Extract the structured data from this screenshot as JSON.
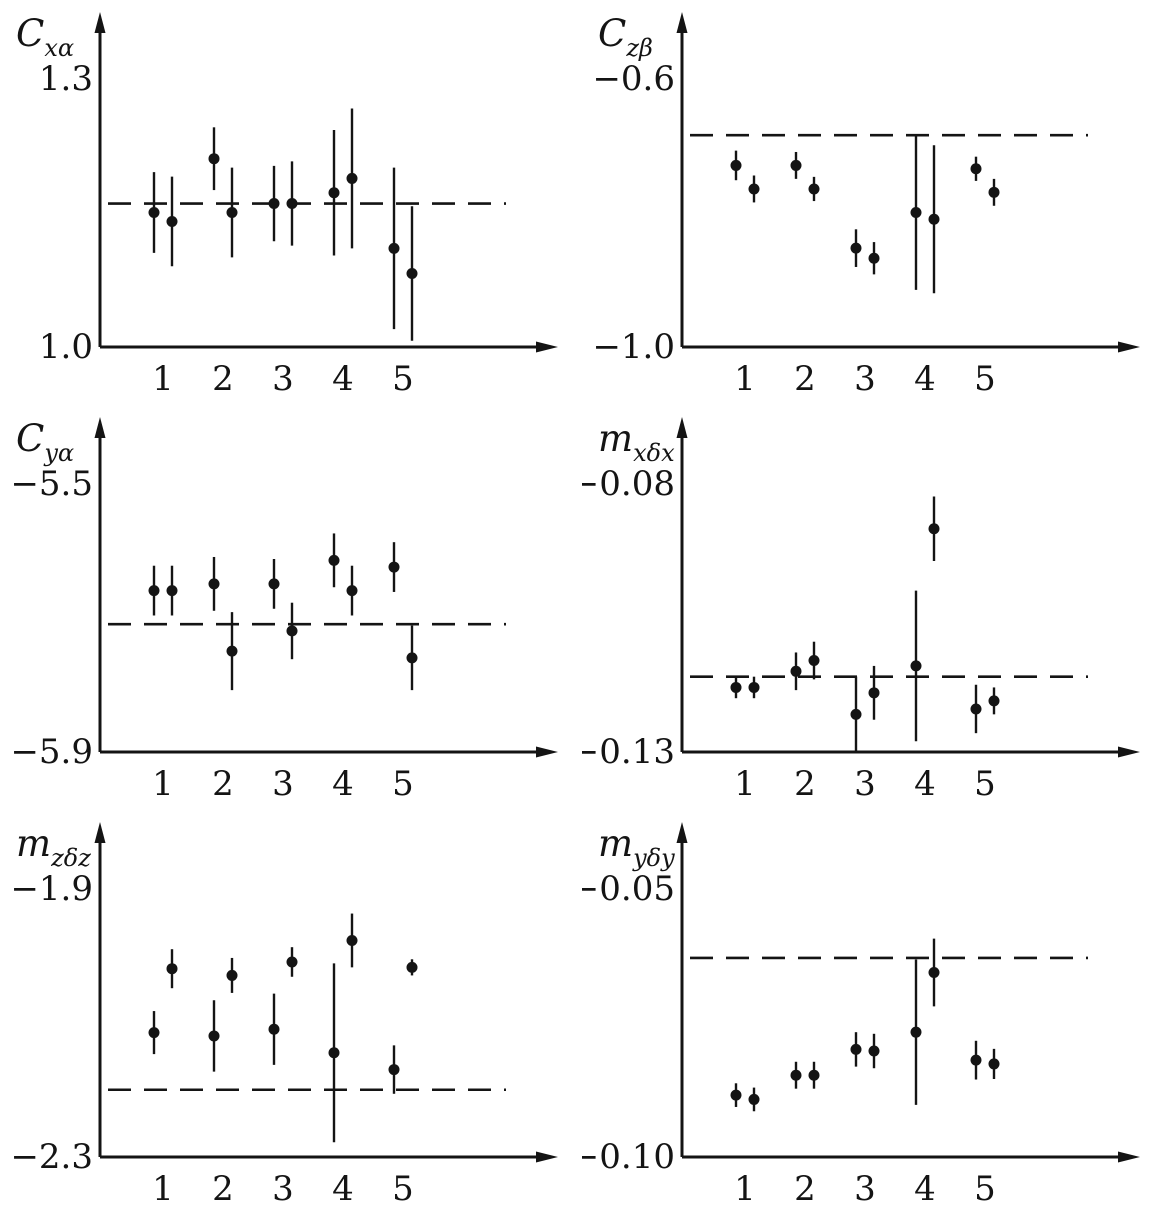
{
  "page": {
    "background": "#ffffff",
    "ink": "#141414"
  },
  "chart_data": {
    "type": "scatter",
    "description": "Six error-bar scatter plots of aerodynamic coefficients versus run number 1-5, each with a horizontal dashed reference line; points appear in pairs around each integer tick",
    "grid": "off",
    "legend": "none",
    "x_tick_labels": [
      "1",
      "2",
      "3",
      "4",
      "5"
    ],
    "plots": [
      {
        "id": "c-x-alpha",
        "ylabel_main": "C",
        "ylabel_sub": "xα",
        "y_axis": {
          "top_value": 1.3,
          "bottom_value": 1.0,
          "top_label": "1.3",
          "bottom_label": "1.0"
        },
        "dashed_reference": 1.16,
        "points": [
          {
            "x": 0.85,
            "y": 1.15,
            "err": 0.045
          },
          {
            "x": 1.15,
            "y": 1.14,
            "err": 0.05
          },
          {
            "x": 1.85,
            "y": 1.21,
            "err": 0.035
          },
          {
            "x": 2.15,
            "y": 1.15,
            "err": 0.05
          },
          {
            "x": 2.85,
            "y": 1.16,
            "err": 0.042
          },
          {
            "x": 3.15,
            "y": 1.16,
            "err": 0.047
          },
          {
            "x": 3.85,
            "y": 1.172,
            "err": 0.07
          },
          {
            "x": 4.15,
            "y": 1.188,
            "err": 0.078
          },
          {
            "x": 4.85,
            "y": 1.11,
            "err": 0.09
          },
          {
            "x": 5.15,
            "y": 1.082,
            "err": 0.075
          }
        ]
      },
      {
        "id": "c-z-beta",
        "ylabel_main": "C",
        "ylabel_sub": "zβ",
        "y_axis": {
          "top_value": -0.6,
          "bottom_value": -1.0,
          "top_label": "−0.6",
          "bottom_label": "−1.0"
        },
        "dashed_reference": -0.685,
        "points": [
          {
            "x": 0.85,
            "y": -0.73,
            "err": 0.022
          },
          {
            "x": 1.15,
            "y": -0.765,
            "err": 0.02
          },
          {
            "x": 1.85,
            "y": -0.73,
            "err": 0.02
          },
          {
            "x": 2.15,
            "y": -0.765,
            "err": 0.018
          },
          {
            "x": 2.85,
            "y": -0.853,
            "err": 0.028
          },
          {
            "x": 3.15,
            "y": -0.868,
            "err": 0.024
          },
          {
            "x": 3.85,
            "y": -0.8,
            "err": 0.115
          },
          {
            "x": 4.15,
            "y": -0.81,
            "err": 0.11
          },
          {
            "x": 4.85,
            "y": -0.735,
            "err": 0.018
          },
          {
            "x": 5.15,
            "y": -0.77,
            "err": 0.02
          }
        ]
      },
      {
        "id": "c-y-alpha",
        "ylabel_main": "C",
        "ylabel_sub": "yα",
        "y_axis": {
          "top_value": -5.5,
          "bottom_value": -5.9,
          "top_label": "−5.5",
          "bottom_label": "−5.9"
        },
        "dashed_reference": -5.71,
        "points": [
          {
            "x": 0.85,
            "y": -5.66,
            "err": 0.037
          },
          {
            "x": 1.15,
            "y": -5.66,
            "err": 0.037
          },
          {
            "x": 1.85,
            "y": -5.65,
            "err": 0.04
          },
          {
            "x": 2.15,
            "y": -5.75,
            "err": 0.058
          },
          {
            "x": 2.85,
            "y": -5.65,
            "err": 0.037
          },
          {
            "x": 3.15,
            "y": -5.72,
            "err": 0.042
          },
          {
            "x": 3.85,
            "y": -5.615,
            "err": 0.04
          },
          {
            "x": 4.15,
            "y": -5.66,
            "err": 0.037
          },
          {
            "x": 4.85,
            "y": -5.625,
            "err": 0.037
          },
          {
            "x": 5.15,
            "y": -5.76,
            "err": 0.048
          }
        ]
      },
      {
        "id": "m-x-delta-x",
        "ylabel_main": "m",
        "ylabel_sub": "xδx",
        "y_axis": {
          "top_value": -0.08,
          "bottom_value": -0.13,
          "top_label": "−0.08",
          "bottom_label": "−0.13"
        },
        "dashed_reference": -0.116,
        "points": [
          {
            "x": 0.85,
            "y": -0.118,
            "err": 0.002
          },
          {
            "x": 1.15,
            "y": -0.118,
            "err": 0.002
          },
          {
            "x": 1.85,
            "y": -0.115,
            "err": 0.0035
          },
          {
            "x": 2.15,
            "y": -0.113,
            "err": 0.0035
          },
          {
            "x": 2.85,
            "y": -0.123,
            "err": 0.007
          },
          {
            "x": 3.15,
            "y": -0.119,
            "err": 0.005
          },
          {
            "x": 3.85,
            "y": -0.114,
            "err": 0.014
          },
          {
            "x": 4.15,
            "y": -0.0885,
            "err": 0.006
          },
          {
            "x": 4.85,
            "y": -0.122,
            "err": 0.0045
          },
          {
            "x": 5.15,
            "y": -0.1205,
            "err": 0.0025
          }
        ]
      },
      {
        "id": "m-z-delta-z",
        "ylabel_main": "m",
        "ylabel_sub": "zδz",
        "y_axis": {
          "top_value": -1.9,
          "bottom_value": -2.3,
          "top_label": "−1.9",
          "bottom_label": "−2.3"
        },
        "dashed_reference": -2.2,
        "points": [
          {
            "x": 0.85,
            "y": -2.115,
            "err": 0.032
          },
          {
            "x": 1.15,
            "y": -2.02,
            "err": 0.029
          },
          {
            "x": 1.85,
            "y": -2.12,
            "err": 0.053
          },
          {
            "x": 2.15,
            "y": -2.03,
            "err": 0.026
          },
          {
            "x": 2.85,
            "y": -2.11,
            "err": 0.053
          },
          {
            "x": 3.15,
            "y": -2.01,
            "err": 0.022
          },
          {
            "x": 3.85,
            "y": -2.145,
            "err": 0.133
          },
          {
            "x": 4.15,
            "y": -1.978,
            "err": 0.04
          },
          {
            "x": 4.85,
            "y": -2.17,
            "err": 0.036
          },
          {
            "x": 5.15,
            "y": -2.018,
            "err": 0.012
          }
        ]
      },
      {
        "id": "m-y-delta-y",
        "ylabel_main": "m",
        "ylabel_sub": "yδy",
        "y_axis": {
          "top_value": -0.05,
          "bottom_value": -0.1,
          "top_label": "−0.05",
          "bottom_label": "−0.10"
        },
        "dashed_reference": -0.063,
        "points": [
          {
            "x": 0.85,
            "y": -0.0885,
            "err": 0.0022
          },
          {
            "x": 1.15,
            "y": -0.0893,
            "err": 0.0022
          },
          {
            "x": 1.85,
            "y": -0.0848,
            "err": 0.0025
          },
          {
            "x": 2.15,
            "y": -0.0848,
            "err": 0.0025
          },
          {
            "x": 2.85,
            "y": -0.08,
            "err": 0.0032
          },
          {
            "x": 3.15,
            "y": -0.0803,
            "err": 0.0032
          },
          {
            "x": 3.85,
            "y": -0.0768,
            "err": 0.0135
          },
          {
            "x": 4.15,
            "y": -0.0657,
            "err": 0.0063
          },
          {
            "x": 4.85,
            "y": -0.082,
            "err": 0.0036
          },
          {
            "x": 5.15,
            "y": -0.0827,
            "err": 0.0028
          }
        ]
      }
    ]
  }
}
